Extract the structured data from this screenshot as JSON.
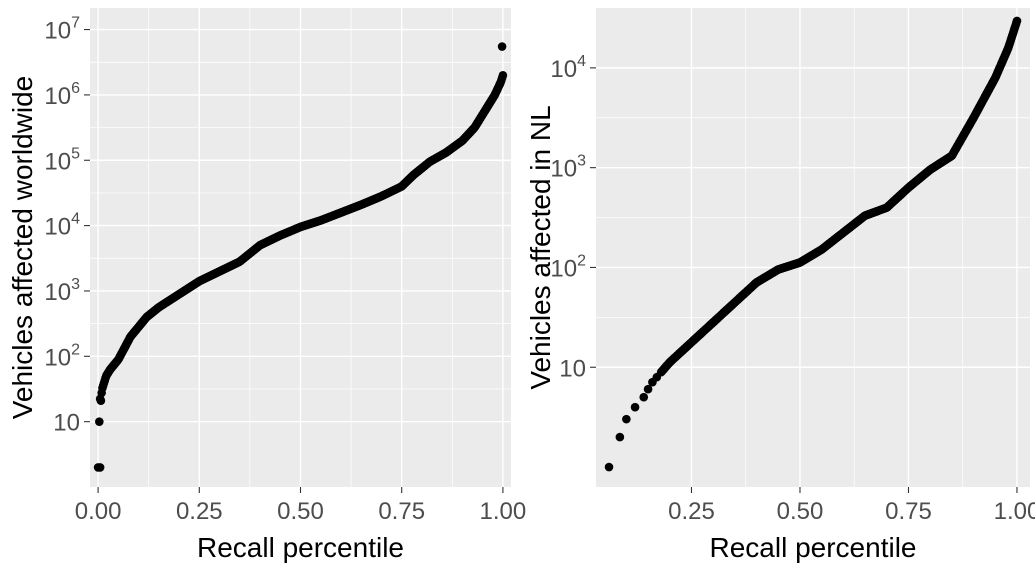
{
  "chart_data": [
    {
      "type": "scatter",
      "xlabel": "Recall percentile",
      "ylabel": "Vehicles affected worldwide",
      "x_scale": "linear",
      "y_scale": "log10",
      "xlim": [
        -0.02,
        1.02
      ],
      "ylim_log10": [
        0.0,
        7.33
      ],
      "grid": true,
      "legend": "none",
      "x_ticks": [
        {
          "value": 0.0,
          "label": "0.00"
        },
        {
          "value": 0.25,
          "label": "0.25"
        },
        {
          "value": 0.5,
          "label": "0.50"
        },
        {
          "value": 0.75,
          "label": "0.75"
        },
        {
          "value": 1.0,
          "label": "1.00"
        }
      ],
      "y_ticks": [
        {
          "value": 10,
          "base": "10",
          "exp": ""
        },
        {
          "value": 100,
          "base": "10",
          "exp": "2"
        },
        {
          "value": 1000,
          "base": "10",
          "exp": "3"
        },
        {
          "value": 10000,
          "base": "10",
          "exp": "4"
        },
        {
          "value": 100000,
          "base": "10",
          "exp": "5"
        },
        {
          "value": 1000000,
          "base": "10",
          "exp": "6"
        },
        {
          "value": 10000000,
          "base": "10",
          "exp": "7"
        }
      ],
      "curve_log10": [
        [
          0.005,
          0.3
        ],
        [
          0.006,
          1.0
        ],
        [
          0.007,
          1.35
        ],
        [
          0.01,
          1.5
        ],
        [
          0.02,
          1.7
        ],
        [
          0.03,
          1.8
        ],
        [
          0.05,
          1.95
        ],
        [
          0.08,
          2.3
        ],
        [
          0.1,
          2.45
        ],
        [
          0.12,
          2.6
        ],
        [
          0.15,
          2.75
        ],
        [
          0.2,
          2.95
        ],
        [
          0.25,
          3.15
        ],
        [
          0.3,
          3.3
        ],
        [
          0.35,
          3.45
        ],
        [
          0.4,
          3.7
        ],
        [
          0.45,
          3.85
        ],
        [
          0.5,
          3.98
        ],
        [
          0.55,
          4.08
        ],
        [
          0.6,
          4.2
        ],
        [
          0.65,
          4.32
        ],
        [
          0.7,
          4.45
        ],
        [
          0.75,
          4.6
        ],
        [
          0.78,
          4.78
        ],
        [
          0.82,
          4.98
        ],
        [
          0.86,
          5.12
        ],
        [
          0.9,
          5.3
        ],
        [
          0.93,
          5.5
        ],
        [
          0.96,
          5.8
        ],
        [
          0.98,
          6.0
        ],
        [
          0.995,
          6.2
        ],
        [
          1.0,
          6.3
        ]
      ],
      "isolated_points_log10": [
        [
          0.0,
          0.3
        ],
        [
          0.003,
          1.0
        ],
        [
          0.005,
          1.35
        ],
        [
          0.998,
          6.74
        ]
      ]
    },
    {
      "type": "scatter",
      "xlabel": "Recall percentile",
      "ylabel": "Vehicles affected in NL",
      "x_scale": "linear",
      "y_scale": "log10",
      "xlim": [
        0.03,
        1.03
      ],
      "ylim_log10": [
        -0.2,
        4.6
      ],
      "grid": true,
      "legend": "none",
      "x_ticks": [
        {
          "value": 0.25,
          "label": "0.25"
        },
        {
          "value": 0.5,
          "label": "0.50"
        },
        {
          "value": 0.75,
          "label": "0.75"
        },
        {
          "value": 1.0,
          "label": "1.00"
        }
      ],
      "y_ticks": [
        {
          "value": 10,
          "base": "10",
          "exp": ""
        },
        {
          "value": 100,
          "base": "10",
          "exp": "2"
        },
        {
          "value": 1000,
          "base": "10",
          "exp": "3"
        },
        {
          "value": 10000,
          "base": "10",
          "exp": "4"
        }
      ],
      "curve_log10": [
        [
          0.18,
          0.95
        ],
        [
          0.2,
          1.05
        ],
        [
          0.25,
          1.25
        ],
        [
          0.3,
          1.45
        ],
        [
          0.35,
          1.65
        ],
        [
          0.4,
          1.85
        ],
        [
          0.45,
          1.98
        ],
        [
          0.5,
          2.05
        ],
        [
          0.55,
          2.18
        ],
        [
          0.6,
          2.35
        ],
        [
          0.65,
          2.52
        ],
        [
          0.7,
          2.6
        ],
        [
          0.75,
          2.8
        ],
        [
          0.8,
          2.98
        ],
        [
          0.85,
          3.12
        ],
        [
          0.9,
          3.5
        ],
        [
          0.95,
          3.9
        ],
        [
          0.98,
          4.2
        ],
        [
          1.0,
          4.47
        ]
      ],
      "isolated_points_log10": [
        [
          0.06,
          0.0
        ],
        [
          0.085,
          0.3
        ],
        [
          0.1,
          0.48
        ],
        [
          0.12,
          0.6
        ],
        [
          0.14,
          0.7
        ],
        [
          0.15,
          0.78
        ],
        [
          0.16,
          0.85
        ],
        [
          0.17,
          0.9
        ]
      ]
    }
  ]
}
